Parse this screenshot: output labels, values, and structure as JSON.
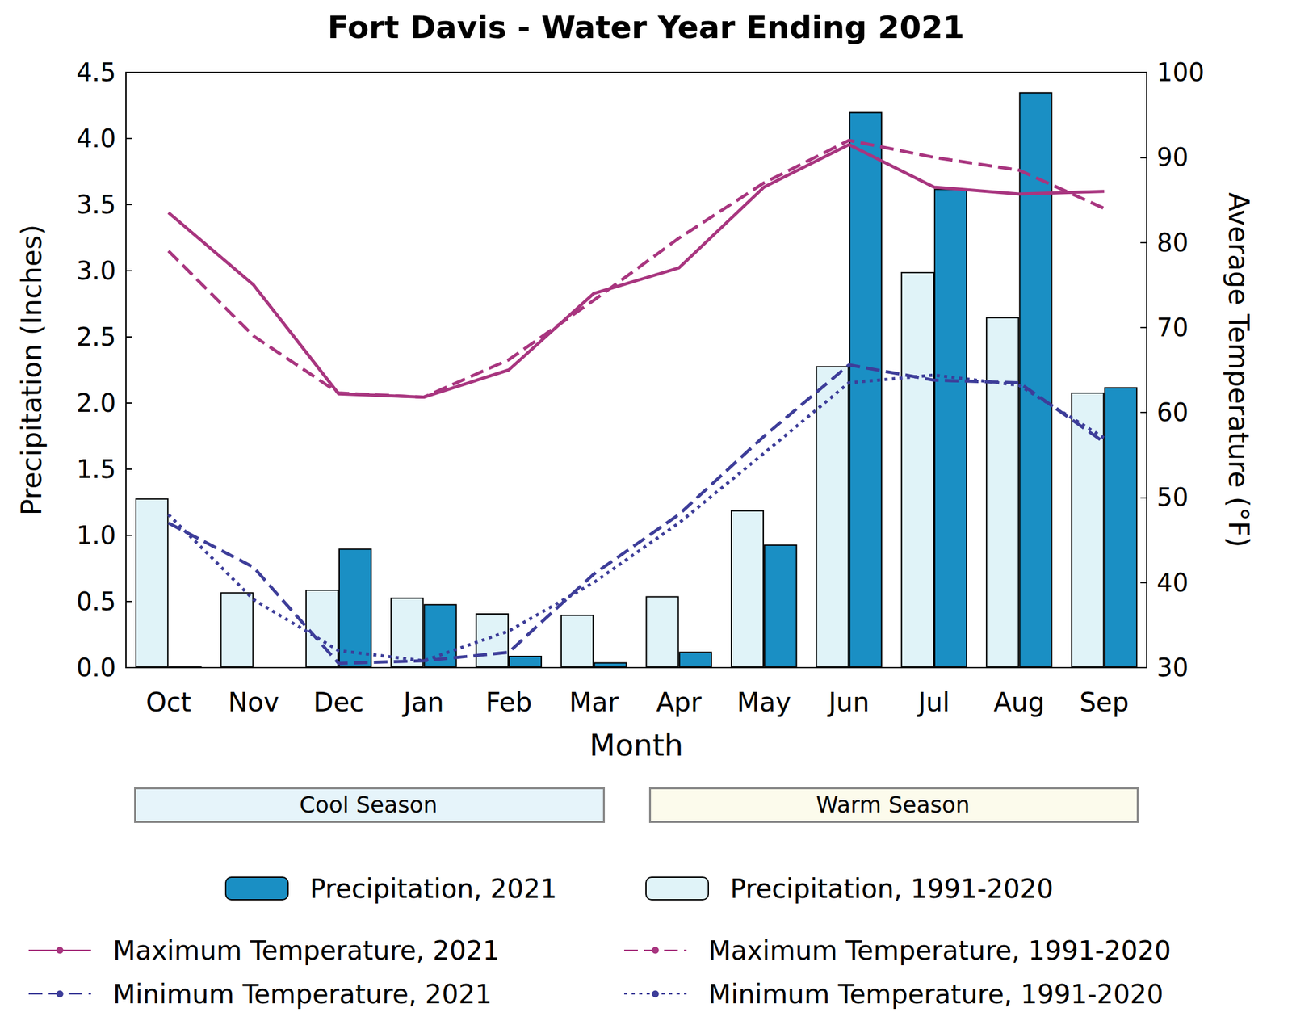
{
  "chart_data": {
    "type": "bar",
    "title": "Fort Davis - Water Year Ending 2021",
    "x_label": "Month",
    "y_label": "Precipitation (Inches)",
    "y2_label": "Average Temperature (°F)",
    "categories": [
      "Oct",
      "Nov",
      "Dec",
      "Jan",
      "Feb",
      "Mar",
      "Apr",
      "May",
      "Jun",
      "Jul",
      "Aug",
      "Sep"
    ],
    "annotations": [
      "Cool Season",
      "Warm Season"
    ],
    "ylim": [
      0,
      4.5
    ],
    "yticks": [
      {
        "value": 0,
        "label": "0.0"
      },
      {
        "value": 0.5,
        "label": "0.5"
      },
      {
        "value": 1,
        "label": "1.0"
      },
      {
        "value": 1.5,
        "label": "1.5"
      },
      {
        "value": 2,
        "label": "2.0"
      },
      {
        "value": 2.5,
        "label": "2.5"
      },
      {
        "value": 3,
        "label": "3.0"
      },
      {
        "value": 3.5,
        "label": "3.5"
      },
      {
        "value": 4,
        "label": "4.0"
      },
      {
        "value": 4.5,
        "label": "4.5"
      }
    ],
    "y2lim": [
      30,
      100
    ],
    "y2ticks": [
      30,
      40,
      50,
      60,
      70,
      80,
      90,
      100
    ],
    "grid": false,
    "legend": "bottom",
    "series": [
      {
        "name": "Precipitation, 2021",
        "type": "bar",
        "color": "#1a8fc4",
        "values": [
          0.01,
          0.0,
          0.9,
          0.48,
          0.09,
          0.04,
          0.12,
          0.93,
          4.2,
          3.62,
          4.35,
          2.12
        ]
      },
      {
        "name": "Precipitation, 1991-2020",
        "type": "bar",
        "color": "#e0f3f8",
        "values": [
          1.28,
          0.57,
          0.59,
          0.53,
          0.41,
          0.4,
          0.54,
          1.19,
          2.28,
          2.99,
          2.65,
          2.08
        ]
      },
      {
        "name": "Maximum Temperature, 2021",
        "type": "line",
        "axis": "y2",
        "color": "#a8357f",
        "line_style": "solid",
        "values": [
          83.5,
          75,
          62.2,
          61.8,
          65,
          74,
          77,
          86.5,
          91.5,
          86.5,
          85.7,
          86
        ]
      },
      {
        "name": "Maximum Temperature, 1991-2020",
        "type": "line",
        "axis": "y2",
        "color": "#a8357f",
        "line_style": "dashed",
        "values": [
          79,
          69,
          62.3,
          61.8,
          66.2,
          73.2,
          80.5,
          87,
          92,
          90,
          88.5,
          84
        ]
      },
      {
        "name": "Minimum Temperature, 2021",
        "type": "line",
        "axis": "y2",
        "color": "#3d3d99",
        "line_style": "dashed",
        "values": [
          47,
          41.8,
          30.5,
          30.8,
          31.8,
          41,
          48,
          57.2,
          65.6,
          63.8,
          63.5,
          56.5
        ]
      },
      {
        "name": "Minimum Temperature, 1991-2020",
        "type": "line",
        "axis": "y2",
        "color": "#3d3d99",
        "line_style": "dotted",
        "values": [
          48,
          38,
          32,
          30.8,
          34.3,
          40,
          47,
          55.2,
          63.5,
          64.4,
          63.2,
          57
        ]
      }
    ]
  }
}
